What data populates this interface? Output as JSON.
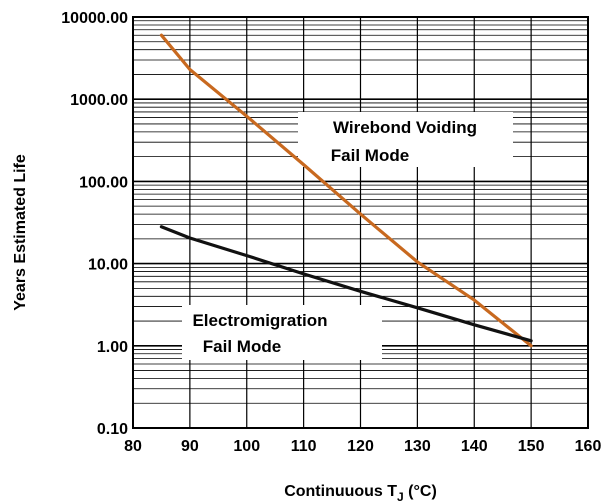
{
  "chart_data": {
    "type": "line",
    "xlabel": "Continuuous T",
    "xlabel_sub": "J",
    "xlabel_suffix": " (°C)",
    "ylabel": "Years Estimated Life",
    "xlim": [
      80,
      160
    ],
    "ylim": [
      0.1,
      10000
    ],
    "yscale": "log",
    "grid": true,
    "x_ticks": [
      80,
      90,
      100,
      110,
      120,
      130,
      140,
      150,
      160
    ],
    "x_tick_labels": [
      "80",
      "90",
      "100",
      "110",
      "120",
      "130",
      "140",
      "150",
      "160"
    ],
    "y_ticks": [
      0.1,
      1,
      10,
      100,
      1000,
      10000
    ],
    "y_tick_labels": [
      "0.10",
      "1.00",
      "10.00",
      "100.00",
      "1000.00",
      "10000.00"
    ],
    "series": [
      {
        "name": "Wirebond Voiding Fail Mode",
        "color": "#c8691f",
        "x": [
          85,
          90,
          100,
          110,
          120,
          130,
          140,
          150
        ],
        "y": [
          6000,
          2300,
          620,
          160,
          40,
          10.5,
          3.6,
          1.0
        ]
      },
      {
        "name": "Electromigration Fail Mode",
        "color": "#111111",
        "x": [
          85,
          90,
          100,
          110,
          120,
          130,
          140,
          150
        ],
        "y": [
          28,
          20.5,
          12.5,
          7.5,
          4.6,
          2.9,
          1.8,
          1.15
        ]
      }
    ],
    "annotations": [
      {
        "id": "wirebond",
        "lines": [
          "Wirebond Voiding",
          "Fail Mode"
        ]
      },
      {
        "id": "electro",
        "lines": [
          "Electromigration",
          "Fail Mode"
        ]
      }
    ]
  }
}
